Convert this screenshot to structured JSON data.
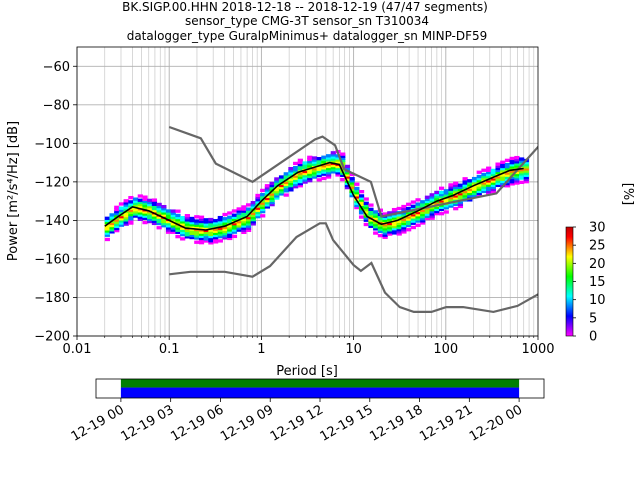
{
  "title": {
    "line1": "BK.SIGP.00.HHN   2018-12-18 -- 2018-12-19  (47/47 segments)",
    "line2": "sensor_type CMG-3T sensor_sn T310034",
    "line3": "datalogger_type GuralpMinimus+ datalogger_sn MINP-DF59"
  },
  "chart_data": [
    {
      "type": "heatmap",
      "xlabel": "Period [s]",
      "ylabel": "Power [m²/s⁴/Hz] [dB]",
      "xscale": "log",
      "xlim": [
        0.01,
        1000
      ],
      "ylim": [
        -200,
        -50
      ],
      "grid": true,
      "xticks": [
        {
          "value": 0.01,
          "label": "0.01"
        },
        {
          "value": 0.1,
          "label": "0.1"
        },
        {
          "value": 1,
          "label": "1"
        },
        {
          "value": 10,
          "label": "10"
        },
        {
          "value": 100,
          "label": "100"
        },
        {
          "value": 1000,
          "label": "1000"
        }
      ],
      "yticks": [
        {
          "value": -60,
          "label": "−60"
        },
        {
          "value": -80,
          "label": "−80"
        },
        {
          "value": -100,
          "label": "−100"
        },
        {
          "value": -120,
          "label": "−120"
        },
        {
          "value": -140,
          "label": "−140"
        },
        {
          "value": -160,
          "label": "−160"
        },
        {
          "value": -180,
          "label": "−180"
        },
        {
          "value": -200,
          "label": "−200"
        }
      ],
      "model_lines": [
        {
          "color": "#666666",
          "x": [
            0.1,
            0.22,
            0.32,
            0.8,
            3.8,
            4.6,
            6.3,
            7.9,
            15.4,
            20,
            354,
            10000
          ],
          "y": [
            -91.5,
            -97.4,
            -110.5,
            -120,
            -98,
            -96.5,
            -101,
            -113.5,
            -120,
            -138,
            -126,
            -48.5
          ]
        },
        {
          "color": "#666666",
          "x": [
            0.1,
            0.17,
            0.4,
            0.8,
            1.24,
            2.4,
            4.3,
            5,
            6,
            10,
            12,
            15.6,
            21.9,
            31.6,
            45,
            70,
            101,
            154,
            328,
            600,
            10000
          ],
          "y": [
            -168,
            -166.7,
            -166.7,
            -169.2,
            -163.7,
            -148.6,
            -141.5,
            -141.5,
            -150.2,
            -163.2,
            -166.2,
            -162.1,
            -177.5,
            -185,
            -187.5,
            -187.5,
            -185,
            -185,
            -187.5,
            -184.4,
            -151.5
          ]
        }
      ],
      "mode_curve": {
        "color": "#000000",
        "x": [
          0.02,
          0.028,
          0.04,
          0.06,
          0.1,
          0.15,
          0.25,
          0.4,
          0.7,
          1,
          1.5,
          2.5,
          4,
          5.5,
          7,
          10,
          14,
          20,
          30,
          50,
          80,
          120,
          200,
          350,
          500,
          700
        ],
        "y": [
          -143,
          -138,
          -133,
          -135,
          -140,
          -144,
          -145,
          -143,
          -138,
          -130,
          -122,
          -115,
          -112,
          -110,
          -111,
          -127,
          -138,
          -142,
          -140,
          -135,
          -130,
          -127,
          -122,
          -117,
          -114,
          -113
        ]
      },
      "colorbar": {
        "label": "[%]",
        "range": [
          0,
          30
        ],
        "ticks": [
          {
            "value": 0,
            "label": "0"
          },
          {
            "value": 5,
            "label": "5"
          },
          {
            "value": 10,
            "label": "10"
          },
          {
            "value": 15,
            "label": "15"
          },
          {
            "value": 20,
            "label": "20"
          },
          {
            "value": 25,
            "label": "25"
          },
          {
            "value": 30,
            "label": "30"
          }
        ],
        "colors": [
          "#ffffff",
          "#ff00ff",
          "#7f00ff",
          "#0000ff",
          "#0080ff",
          "#00ffff",
          "#00ff80",
          "#00ff00",
          "#80ff00",
          "#ffff00",
          "#ff8000",
          "#ff0000",
          "#c00000"
        ]
      }
    },
    {
      "type": "timeline",
      "xlim": [
        "2018-12-18 22:30",
        "2018-12-20 01:30"
      ],
      "xticks": [
        "12-19 00",
        "12-19 03",
        "12-19 06",
        "12-19 09",
        "12-19 12",
        "12-19 15",
        "12-19 18",
        "12-19 21",
        "12-20 00"
      ],
      "bars": [
        {
          "start": "2018-12-19 00:00",
          "end": "2018-12-20 00:00",
          "color": "#008000",
          "row": "top"
        },
        {
          "start": "2018-12-19 00:00",
          "end": "2018-12-20 00:00",
          "color": "#0000ff",
          "row": "bottom"
        }
      ]
    }
  ]
}
